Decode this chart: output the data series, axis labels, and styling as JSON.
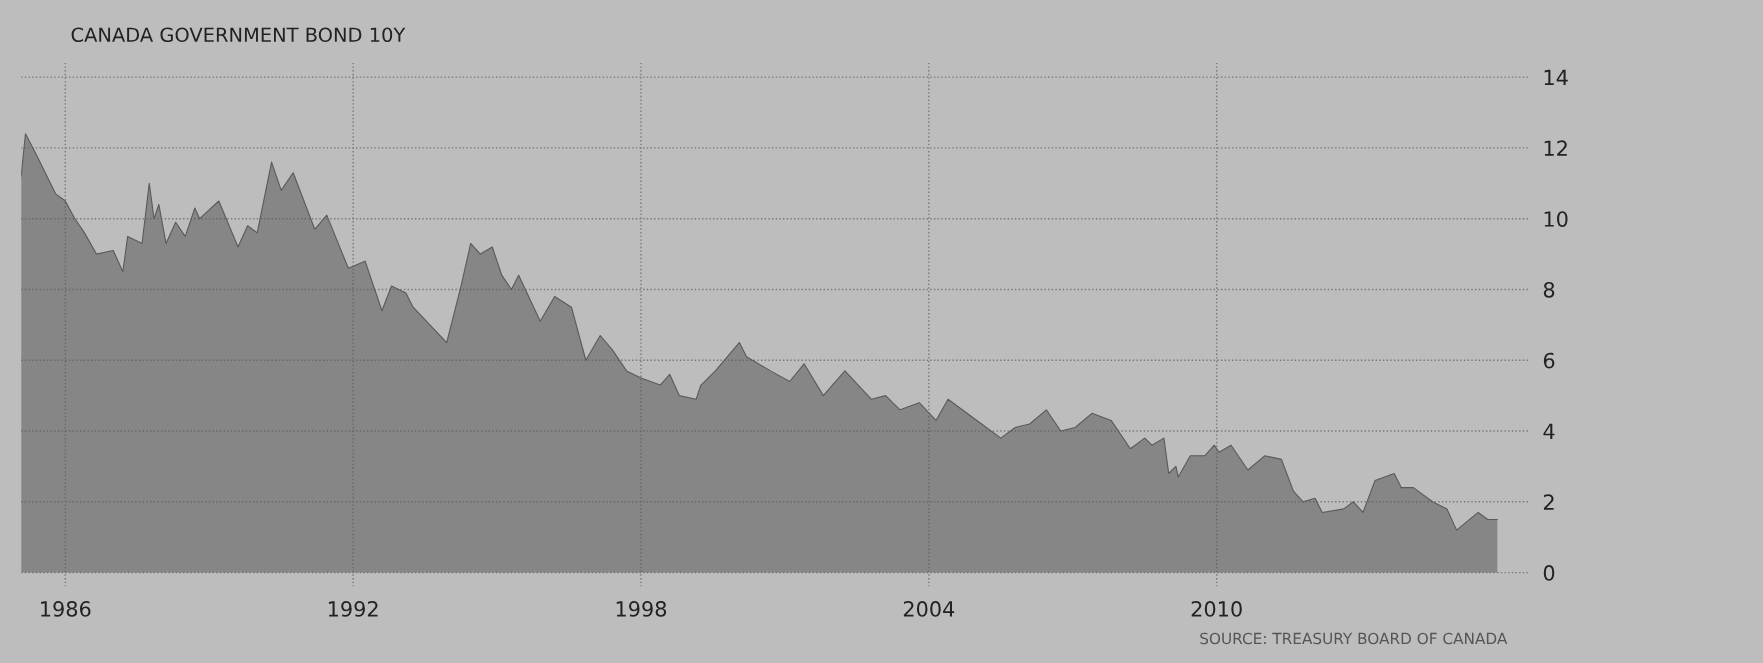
{
  "chart_data": {
    "type": "area",
    "title": "CANADA GOVERNMENT BOND 10Y",
    "annotations": [
      "SOURCE: TREASURY BOARD OF CANADA"
    ],
    "x": [
      1985.08,
      1985.17,
      1985.4,
      1985.8,
      1986.0,
      1986.2,
      1986.4,
      1986.65,
      1987.0,
      1987.2,
      1987.3,
      1987.6,
      1987.75,
      1987.85,
      1987.95,
      1988.1,
      1988.3,
      1988.5,
      1988.7,
      1988.8,
      1989.2,
      1989.6,
      1989.8,
      1990.0,
      1990.3,
      1990.5,
      1990.75,
      1991.2,
      1991.45,
      1991.9,
      1992.25,
      1992.6,
      1992.8,
      1993.1,
      1993.25,
      1993.6,
      1993.95,
      1994.25,
      1994.45,
      1994.65,
      1994.9,
      1995.1,
      1995.3,
      1995.45,
      1995.9,
      1996.2,
      1996.55,
      1996.85,
      1997.15,
      1997.4,
      1997.7,
      1998.0,
      1998.4,
      1998.6,
      1998.8,
      1999.15,
      1999.25,
      1999.55,
      2000.05,
      2000.2,
      2000.7,
      2001.1,
      2001.4,
      2001.8,
      2002.25,
      2002.8,
      2003.1,
      2003.4,
      2003.8,
      2004.15,
      2004.4,
      2005.1,
      2005.5,
      2005.8,
      2006.1,
      2006.45,
      2006.75,
      2007.05,
      2007.4,
      2007.8,
      2008.2,
      2008.5,
      2008.65,
      2008.9,
      2009.0,
      2009.15,
      2009.2,
      2009.45,
      2009.75,
      2009.95,
      2010.05,
      2010.3,
      2010.65,
      2011.0,
      2011.35,
      2011.6,
      2011.8,
      2012.05,
      2012.2,
      2012.65,
      2012.85,
      2013.05,
      2013.3,
      2013.7,
      2013.85,
      2014.1,
      2014.5,
      2014.8,
      2015.0,
      2015.45,
      2015.65,
      2015.85
    ],
    "series": [
      {
        "color": "#5a5a5a",
        "values": [
          11.2,
          12.4,
          11.8,
          10.7,
          10.5,
          10.0,
          9.6,
          9.0,
          9.1,
          8.5,
          9.5,
          9.3,
          11.0,
          10.0,
          10.4,
          9.3,
          9.9,
          9.5,
          10.3,
          10.0,
          10.5,
          9.2,
          9.8,
          9.6,
          11.6,
          10.8,
          11.3,
          9.7,
          10.1,
          8.6,
          8.8,
          7.4,
          8.1,
          7.9,
          7.5,
          7.0,
          6.5,
          8.1,
          9.3,
          9.0,
          9.2,
          8.4,
          8.0,
          8.4,
          7.1,
          7.8,
          7.5,
          6.0,
          6.7,
          6.3,
          5.7,
          5.5,
          5.3,
          5.6,
          5.0,
          4.9,
          5.3,
          5.7,
          6.5,
          6.1,
          5.7,
          5.4,
          5.9,
          5.0,
          5.7,
          4.9,
          5.0,
          4.6,
          4.8,
          4.3,
          4.9,
          4.2,
          3.8,
          4.1,
          4.2,
          4.6,
          4.0,
          4.1,
          4.5,
          4.3,
          3.5,
          3.8,
          3.6,
          3.8,
          2.8,
          3.0,
          2.7,
          3.3,
          3.3,
          3.6,
          3.4,
          3.6,
          2.9,
          3.3,
          3.2,
          2.3,
          2.0,
          2.1,
          1.7,
          1.8,
          2.0,
          1.7,
          2.6,
          2.8,
          2.4,
          2.4,
          2.0,
          1.8,
          1.2,
          1.7,
          1.5,
          1.5
        ]
      }
    ],
    "xlim": [
      1985.08,
      2016.5
    ],
    "xticks": [
      1986,
      1992,
      1998,
      2004,
      2010
    ],
    "ylim": [
      -0.4,
      14.4
    ],
    "yticks": [
      0,
      2,
      4,
      6,
      8,
      10,
      12,
      14
    ],
    "grid": true
  }
}
